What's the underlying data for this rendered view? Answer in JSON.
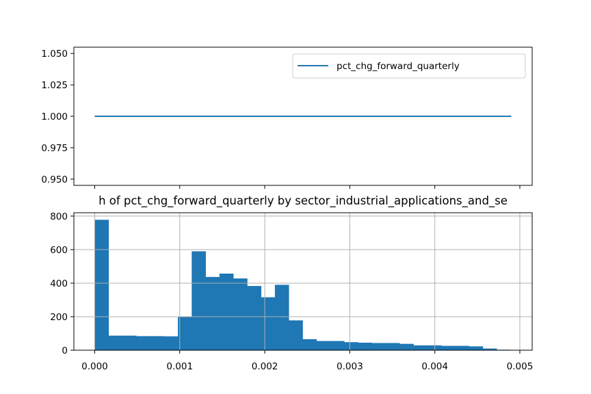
{
  "colors": {
    "series": "#1f77b4",
    "grid": "#b0b0b0",
    "axes": "#000000",
    "legend_border": "#cccccc"
  },
  "chart_data": [
    {
      "type": "line",
      "title": "",
      "xlabel": "",
      "ylabel": "",
      "xlim": [
        -0.000245,
        0.005145
      ],
      "ylim": [
        0.945,
        1.055
      ],
      "x": [
        0.0,
        0.0049
      ],
      "series": [
        {
          "name": "pct_chg_forward_quarterly",
          "values": [
            1.0,
            1.0
          ]
        }
      ],
      "yticks": [
        0.95,
        0.975,
        1.0,
        1.025,
        1.05
      ],
      "ytick_labels": [
        "0.950",
        "0.975",
        "1.000",
        "1.025",
        "1.050"
      ],
      "xticks": [
        0.0,
        0.001,
        0.002,
        0.003,
        0.004,
        0.005
      ],
      "xtick_labels_shown": false,
      "grid": false,
      "legend": "top-right"
    },
    {
      "type": "histogram",
      "title": "h of pct_chg_forward_quarterly by sector_industrial_applications_and_se",
      "xlabel": "",
      "ylabel": "",
      "xlim": [
        -0.000245,
        0.005145
      ],
      "ylim": [
        0,
        820
      ],
      "bins_start": 0.0,
      "bin_width": 0.000163,
      "counts": [
        778,
        87,
        87,
        84,
        84,
        83,
        200,
        590,
        437,
        457,
        428,
        383,
        316,
        390,
        178,
        66,
        55,
        55,
        48,
        45,
        43,
        43,
        38,
        29,
        29,
        26,
        26,
        23,
        10,
        3
      ],
      "xticks": [
        0.0,
        0.001,
        0.002,
        0.003,
        0.004,
        0.005
      ],
      "xtick_labels": [
        "0.000",
        "0.001",
        "0.002",
        "0.003",
        "0.004",
        "0.005"
      ],
      "yticks": [
        0,
        200,
        400,
        600,
        800
      ],
      "ytick_labels": [
        "0",
        "200",
        "400",
        "600",
        "800"
      ],
      "grid": true
    }
  ]
}
